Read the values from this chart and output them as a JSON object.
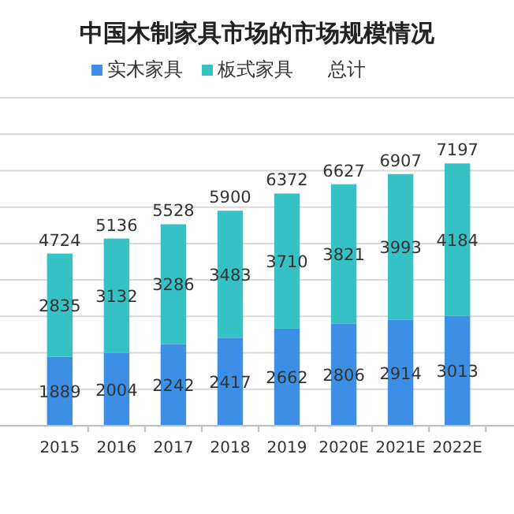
{
  "chart_data": {
    "type": "bar",
    "title": "中国木制家具市场的市场规模情况",
    "categories": [
      "2015",
      "2016",
      "2017",
      "2018",
      "2019",
      "2020E",
      "2021E",
      "2022E"
    ],
    "stacked": true,
    "series": [
      {
        "name": "实木家具",
        "color": "#3d8fe6",
        "values": [
          1889,
          2004,
          2242,
          2417,
          2662,
          2806,
          2914,
          3013
        ]
      },
      {
        "name": "板式家具",
        "color": "#36c1c4",
        "values": [
          2835,
          3132,
          3286,
          3483,
          3710,
          3821,
          3993,
          4184
        ]
      }
    ],
    "totals": [
      "4724",
      "5136",
      "5528",
      "5900",
      "6372",
      "6627",
      "6907",
      "7197"
    ],
    "annotations": [
      "总计"
    ],
    "data_labels": true,
    "ylim": [
      0,
      9000
    ],
    "yticks": [
      {
        "value": 0,
        "label": null
      },
      {
        "value": 1000,
        "label": null
      },
      {
        "value": 2000,
        "label": null
      },
      {
        "value": 3000,
        "label": null
      },
      {
        "value": 4000,
        "label": null
      },
      {
        "value": 5000,
        "label": null
      },
      {
        "value": 6000,
        "label": null
      },
      {
        "value": 7000,
        "label": null
      },
      {
        "value": 8000,
        "label": null
      },
      {
        "value": 9000,
        "label": null
      }
    ],
    "grid": "y",
    "tick_labels": "x",
    "legend": "top"
  }
}
